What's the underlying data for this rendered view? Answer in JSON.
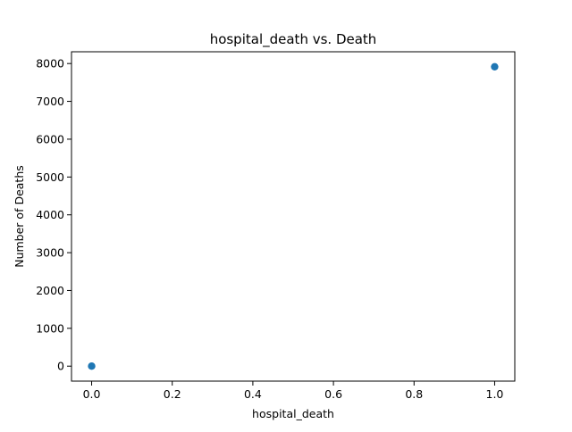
{
  "chart_data": {
    "type": "scatter",
    "title": "hospital_death vs. Death",
    "xlabel": "hospital_death",
    "ylabel": "Number of Deaths",
    "x": [
      0.0,
      1.0
    ],
    "y": [
      0,
      7915
    ],
    "xlim": [
      -0.05,
      1.05
    ],
    "ylim": [
      -396,
      8311
    ],
    "xticks": [
      0.0,
      0.2,
      0.4,
      0.6,
      0.8,
      1.0
    ],
    "xtick_labels": [
      "0.0",
      "0.2",
      "0.4",
      "0.6",
      "0.8",
      "1.0"
    ],
    "yticks": [
      0,
      1000,
      2000,
      3000,
      4000,
      5000,
      6000,
      7000,
      8000
    ],
    "ytick_labels": [
      "0",
      "1000",
      "2000",
      "3000",
      "4000",
      "5000",
      "6000",
      "7000",
      "8000"
    ],
    "grid": false,
    "legend": "none",
    "marker_color": "#1f77b4"
  }
}
